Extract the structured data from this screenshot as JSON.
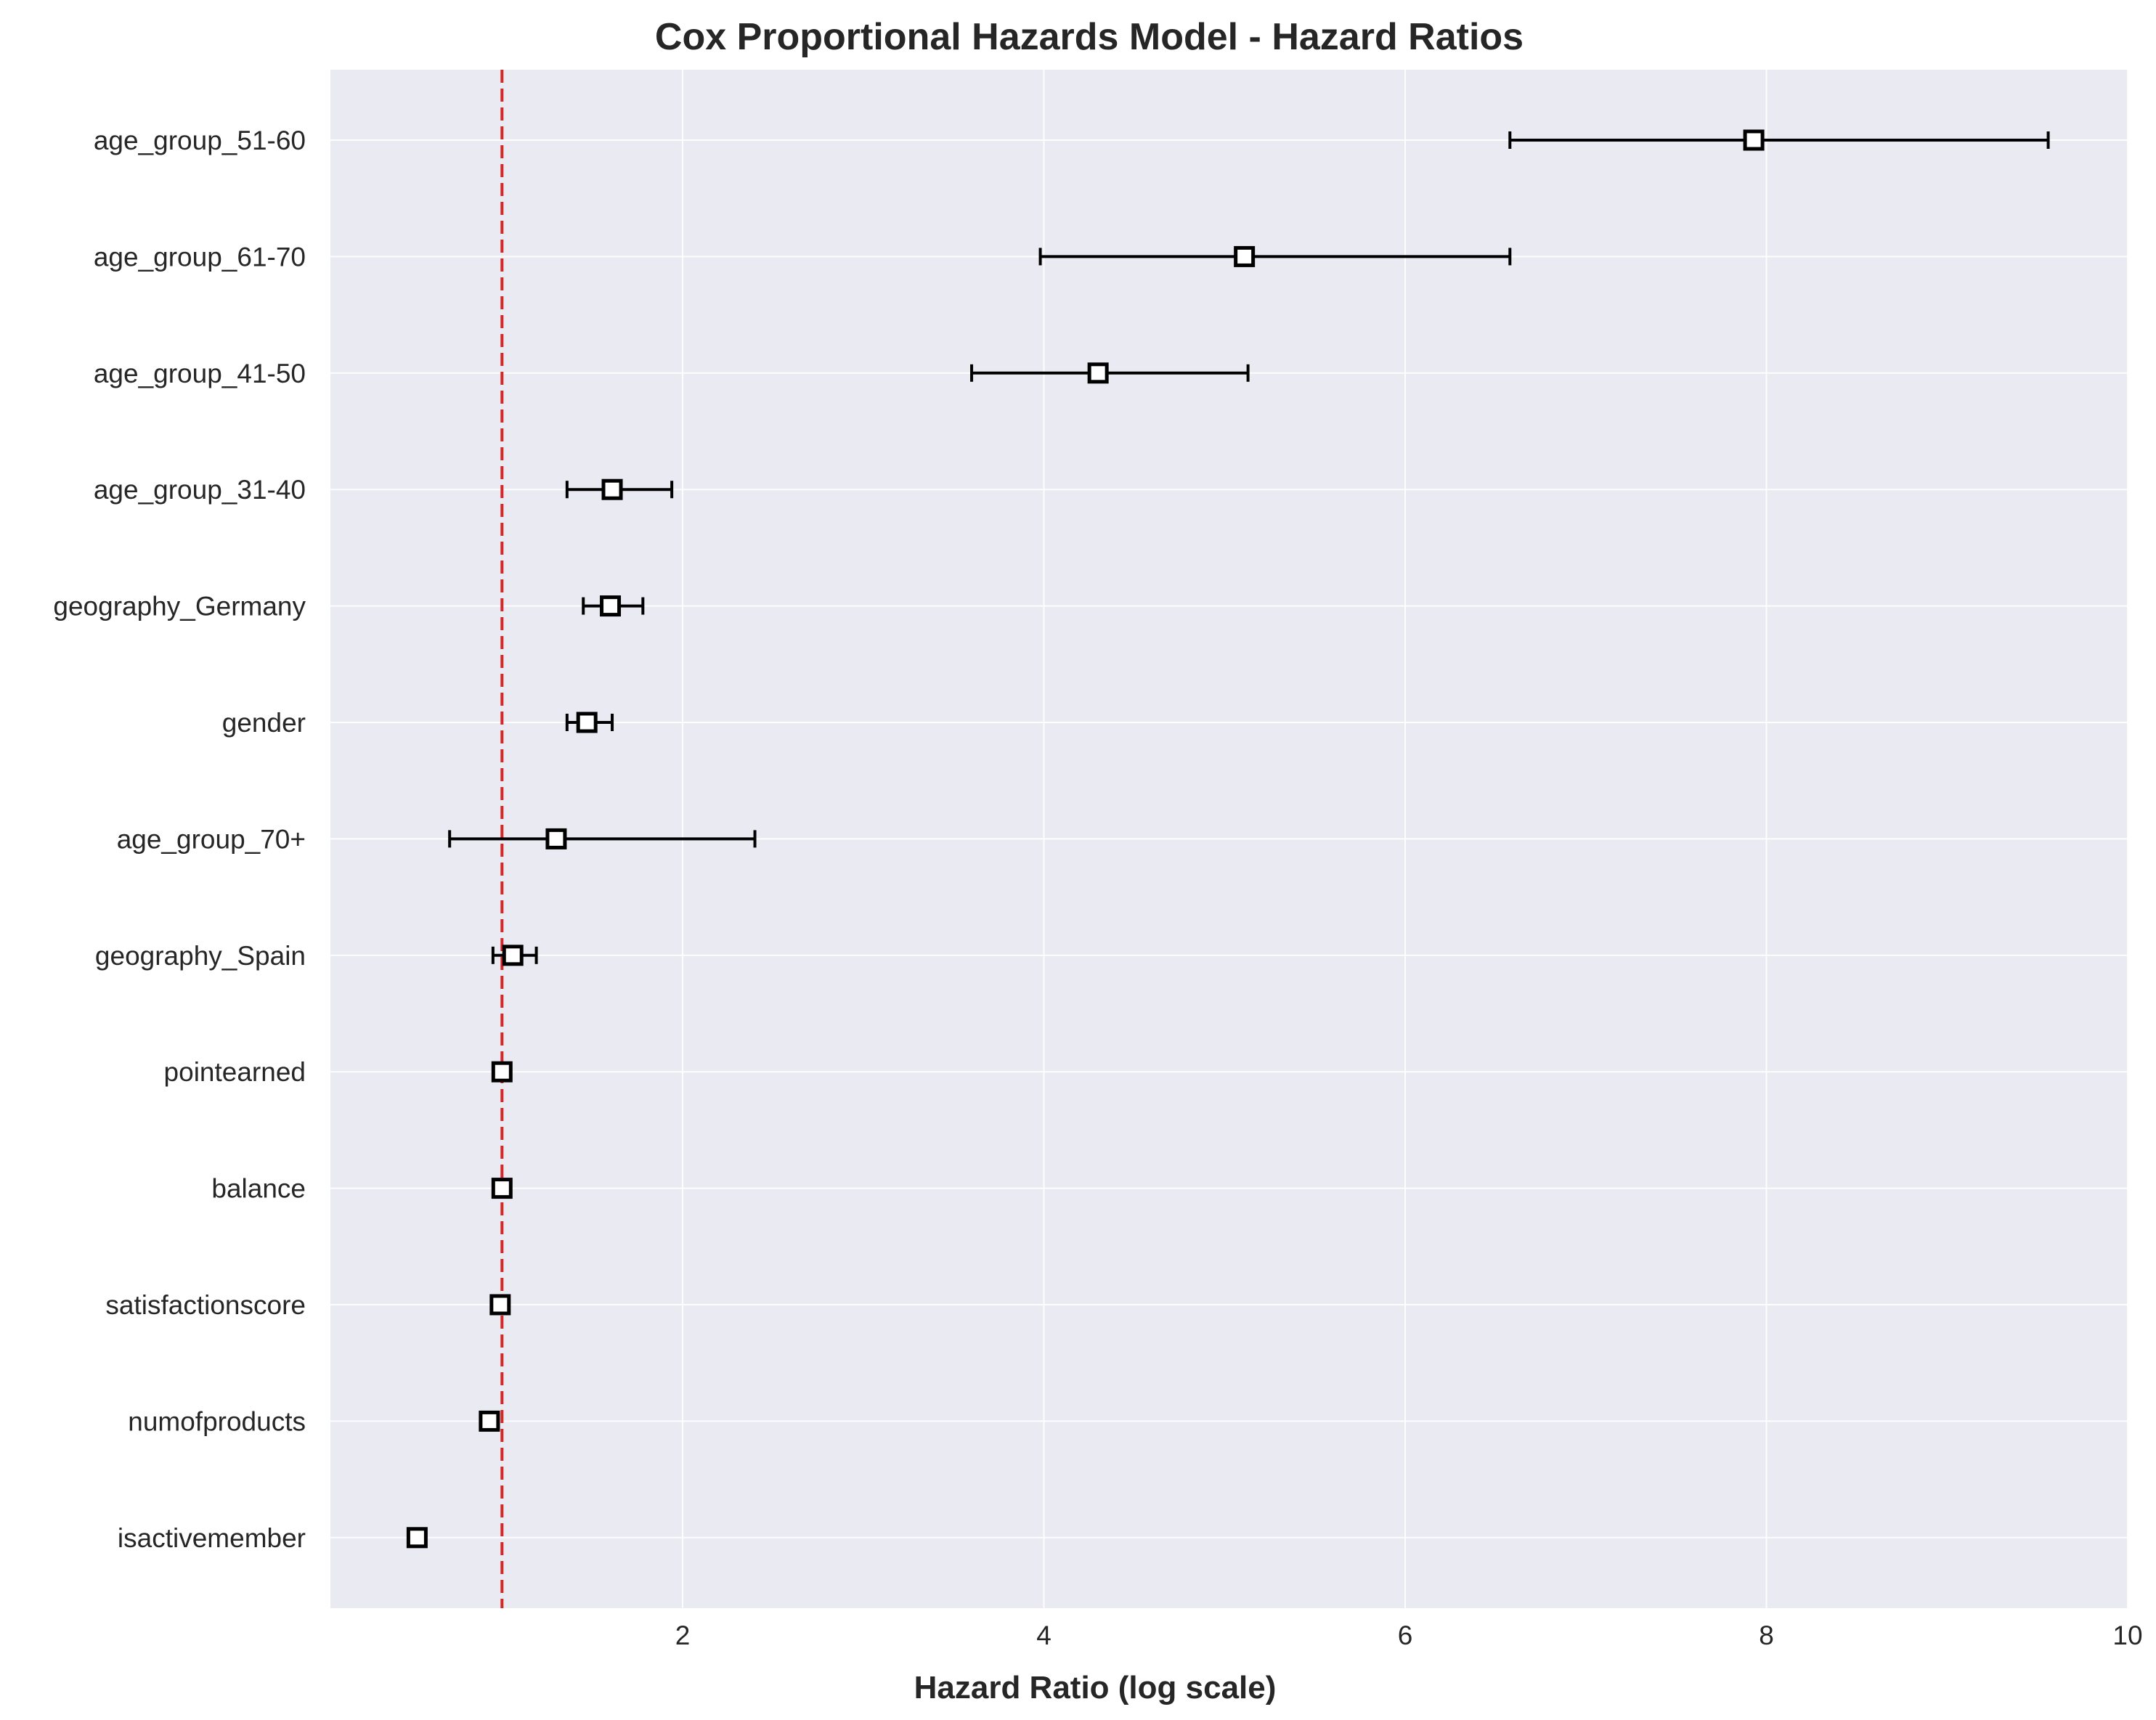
{
  "chart_data": {
    "type": "forest",
    "title": "Cox Proportional Hazards Model - Hazard Ratios",
    "xlabel": "Hazard Ratio (log scale)",
    "ylabel": "",
    "xlim": [
      0.05,
      10
    ],
    "xticks": [
      2,
      4,
      6,
      8,
      10
    ],
    "grid": true,
    "reference_line": {
      "x": 1.0,
      "style": "dashed",
      "color": "#d62728"
    },
    "colors": {
      "plot_background": "#eaeaf2",
      "grid": "#ffffff",
      "marker_edge": "#000000",
      "marker_face": "#ffffff",
      "errorbar": "#000000",
      "reference_line": "#d62728"
    },
    "categories": [
      "age_group_51-60",
      "age_group_61-70",
      "age_group_41-50",
      "age_group_31-40",
      "geography_Germany",
      "gender",
      "age_group_70+",
      "geography_Spain",
      "pointearned",
      "balance",
      "satisfactionscore",
      "numofproducts",
      "isactivemember"
    ],
    "series": [
      {
        "hazard_ratio": [
          7.93,
          5.11,
          4.3,
          1.61,
          1.6,
          1.47,
          1.3,
          1.06,
          1.0,
          1.0,
          0.99,
          0.93,
          0.53
        ],
        "ci_lower": [
          6.58,
          3.98,
          3.6,
          1.36,
          1.45,
          1.36,
          0.71,
          0.95,
          0.99,
          0.99,
          0.97,
          0.88,
          0.51
        ],
        "ci_upper": [
          9.56,
          6.58,
          5.13,
          1.94,
          1.78,
          1.61,
          2.4,
          1.19,
          1.01,
          1.01,
          1.01,
          0.98,
          0.56
        ]
      }
    ]
  }
}
